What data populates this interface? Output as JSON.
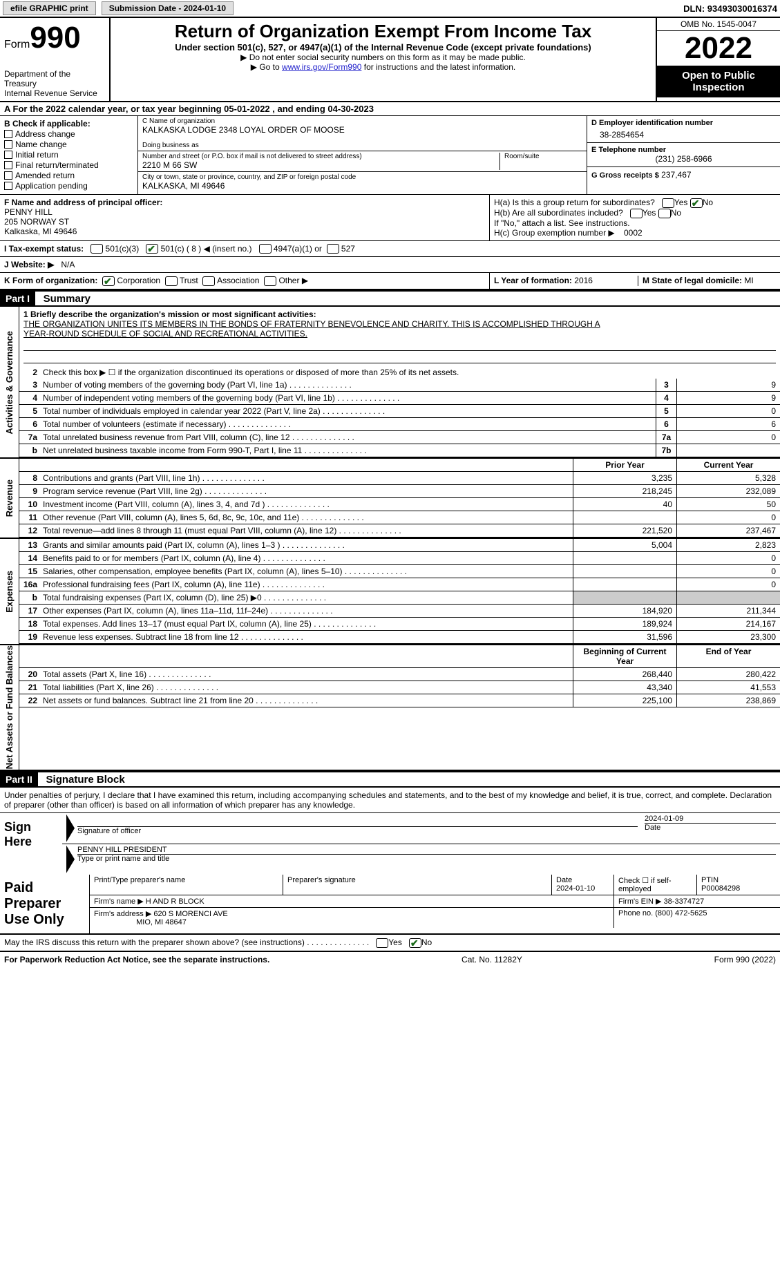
{
  "top": {
    "efile": "efile GRAPHIC print",
    "sub_label": "Submission Date - 2024-01-10",
    "dln": "DLN: 93493030016374"
  },
  "header": {
    "form": "Form",
    "num": "990",
    "dept": "Department of the Treasury\nInternal Revenue Service",
    "title": "Return of Organization Exempt From Income Tax",
    "sub": "Under section 501(c), 527, or 4947(a)(1) of the Internal Revenue Code (except private foundations)",
    "note1": "▶ Do not enter social security numbers on this form as it may be made public.",
    "note2_pre": "▶ Go to ",
    "note2_link": "www.irs.gov/Form990",
    "note2_post": " for instructions and the latest information.",
    "omb": "OMB No. 1545-0047",
    "year": "2022",
    "public": "Open to Public Inspection"
  },
  "A": {
    "text": "For the 2022 calendar year, or tax year beginning 05-01-2022   , and ending 04-30-2023"
  },
  "B": {
    "label": "B Check if applicable:",
    "items": [
      "Address change",
      "Name change",
      "Initial return",
      "Final return/terminated",
      "Amended return",
      "Application pending"
    ]
  },
  "C": {
    "name_label": "C Name of organization",
    "name": "KALKASKA LODGE 2348 LOYAL ORDER OF MOOSE",
    "dba_label": "Doing business as",
    "dba": "",
    "addr_label": "Number and street (or P.O. box if mail is not delivered to street address)",
    "room_label": "Room/suite",
    "addr": "2210 M 66 SW",
    "city_label": "City or town, state or province, country, and ZIP or foreign postal code",
    "city": "KALKASKA, MI  49646"
  },
  "D": {
    "label": "D Employer identification number",
    "val": "38-2854654"
  },
  "E": {
    "label": "E Telephone number",
    "val": "(231) 258-6966"
  },
  "G": {
    "label": "G Gross receipts $",
    "val": "237,467"
  },
  "F": {
    "label": "F  Name and address of principal officer:",
    "name": "PENNY HILL",
    "addr1": "205 NORWAY ST",
    "addr2": "Kalkaska, MI  49646"
  },
  "H": {
    "a": "H(a)  Is this a group return for subordinates?",
    "a_no": "No",
    "b": "H(b)  Are all subordinates included?",
    "b_note": "If \"No,\" attach a list. See instructions.",
    "c": "H(c)  Group exemption number ▶",
    "c_val": "0002"
  },
  "I": {
    "label": "I  Tax-exempt status:",
    "opts": [
      "501(c)(3)",
      "501(c) ( 8 ) ◀ (insert no.)",
      "4947(a)(1) or",
      "527"
    ]
  },
  "J": {
    "label": "J  Website: ▶",
    "val": "N/A"
  },
  "K": {
    "label": "K Form of organization:",
    "opts": [
      "Corporation",
      "Trust",
      "Association",
      "Other ▶"
    ]
  },
  "L": {
    "label": "L Year of formation:",
    "val": "2016"
  },
  "M": {
    "label": "M State of legal domicile:",
    "val": "MI"
  },
  "part1": {
    "hdr": "Part I",
    "title": "Summary"
  },
  "mission": {
    "label": "1  Briefly describe the organization's mission or most significant activities:",
    "line1": "THE ORGANIZATION UNITES ITS MEMBERS IN THE BONDS OF FRATERNITY BENEVOLENCE AND CHARITY. THIS IS ACCOMPLISHED THROUGH A",
    "line2": "YEAR-ROUND SCHEDULE OF SOCIAL AND RECREATIONAL ACTIVITIES."
  },
  "line2": "Check this box ▶ ☐  if the organization discontinued its operations or disposed of more than 25% of its net assets.",
  "gov_lines": [
    {
      "n": "3",
      "t": "Number of voting members of the governing body (Part VI, line 1a)",
      "box": "3",
      "v": "9"
    },
    {
      "n": "4",
      "t": "Number of independent voting members of the governing body (Part VI, line 1b)",
      "box": "4",
      "v": "9"
    },
    {
      "n": "5",
      "t": "Total number of individuals employed in calendar year 2022 (Part V, line 2a)",
      "box": "5",
      "v": "0"
    },
    {
      "n": "6",
      "t": "Total number of volunteers (estimate if necessary)",
      "box": "6",
      "v": "6"
    },
    {
      "n": "7a",
      "t": "Total unrelated business revenue from Part VIII, column (C), line 12",
      "box": "7a",
      "v": "0"
    },
    {
      "n": " b",
      "t": "Net unrelated business taxable income from Form 990-T, Part I, line 11",
      "box": "7b",
      "v": ""
    }
  ],
  "rev_hdr": {
    "prior": "Prior Year",
    "cur": "Current Year"
  },
  "rev_lines": [
    {
      "n": "8",
      "t": "Contributions and grants (Part VIII, line 1h)",
      "p": "3,235",
      "c": "5,328"
    },
    {
      "n": "9",
      "t": "Program service revenue (Part VIII, line 2g)",
      "p": "218,245",
      "c": "232,089"
    },
    {
      "n": "10",
      "t": "Investment income (Part VIII, column (A), lines 3, 4, and 7d )",
      "p": "40",
      "c": "50"
    },
    {
      "n": "11",
      "t": "Other revenue (Part VIII, column (A), lines 5, 6d, 8c, 9c, 10c, and 11e)",
      "p": "",
      "c": "0"
    },
    {
      "n": "12",
      "t": "Total revenue—add lines 8 through 11 (must equal Part VIII, column (A), line 12)",
      "p": "221,520",
      "c": "237,467"
    }
  ],
  "exp_lines": [
    {
      "n": "13",
      "t": "Grants and similar amounts paid (Part IX, column (A), lines 1–3 )",
      "p": "5,004",
      "c": "2,823"
    },
    {
      "n": "14",
      "t": "Benefits paid to or for members (Part IX, column (A), line 4)",
      "p": "",
      "c": "0"
    },
    {
      "n": "15",
      "t": "Salaries, other compensation, employee benefits (Part IX, column (A), lines 5–10)",
      "p": "",
      "c": "0"
    },
    {
      "n": "16a",
      "t": "Professional fundraising fees (Part IX, column (A), line 11e)",
      "p": "",
      "c": "0"
    },
    {
      "n": "b",
      "t": "Total fundraising expenses (Part IX, column (D), line 25) ▶0",
      "p": "gray",
      "c": "gray"
    },
    {
      "n": "17",
      "t": "Other expenses (Part IX, column (A), lines 11a–11d, 11f–24e)",
      "p": "184,920",
      "c": "211,344"
    },
    {
      "n": "18",
      "t": "Total expenses. Add lines 13–17 (must equal Part IX, column (A), line 25)",
      "p": "189,924",
      "c": "214,167"
    },
    {
      "n": "19",
      "t": "Revenue less expenses. Subtract line 18 from line 12",
      "p": "31,596",
      "c": "23,300"
    }
  ],
  "net_hdr": {
    "prior": "Beginning of Current Year",
    "cur": "End of Year"
  },
  "net_lines": [
    {
      "n": "20",
      "t": "Total assets (Part X, line 16)",
      "p": "268,440",
      "c": "280,422"
    },
    {
      "n": "21",
      "t": "Total liabilities (Part X, line 26)",
      "p": "43,340",
      "c": "41,553"
    },
    {
      "n": "22",
      "t": "Net assets or fund balances. Subtract line 21 from line 20",
      "p": "225,100",
      "c": "238,869"
    }
  ],
  "vlabels": {
    "gov": "Activities & Governance",
    "rev": "Revenue",
    "exp": "Expenses",
    "net": "Net Assets or Fund Balances"
  },
  "part2": {
    "hdr": "Part II",
    "title": "Signature Block"
  },
  "sig": {
    "decl": "Under penalties of perjury, I declare that I have examined this return, including accompanying schedules and statements, and to the best of my knowledge and belief, it is true, correct, and complete. Declaration of preparer (other than officer) is based on all information of which preparer has any knowledge.",
    "here": "Sign Here",
    "sig_label": "Signature of officer",
    "date_label": "Date",
    "date": "2024-01-09",
    "name": "PENNY HILL  PRESIDENT",
    "name_label": "Type or print name and title"
  },
  "prep": {
    "label": "Paid Preparer Use Only",
    "h1": "Print/Type preparer's name",
    "h2": "Preparer's signature",
    "h3": "Date",
    "date": "2024-01-10",
    "h4": "Check ☐ if self-employed",
    "h5": "PTIN",
    "ptin": "P00084298",
    "firm_label": "Firm's name   ▶",
    "firm": "H AND R BLOCK",
    "ein_label": "Firm's EIN ▶",
    "ein": "38-3374727",
    "addr_label": "Firm's address ▶",
    "addr1": "620 S MORENCI AVE",
    "addr2": "MIO, MI  48647",
    "phone_label": "Phone no.",
    "phone": "(800) 472-5625"
  },
  "discuss": "May the IRS discuss this return with the preparer shown above? (see instructions)",
  "footer": {
    "left": "For Paperwork Reduction Act Notice, see the separate instructions.",
    "mid": "Cat. No. 11282Y",
    "right": "Form 990 (2022)"
  }
}
